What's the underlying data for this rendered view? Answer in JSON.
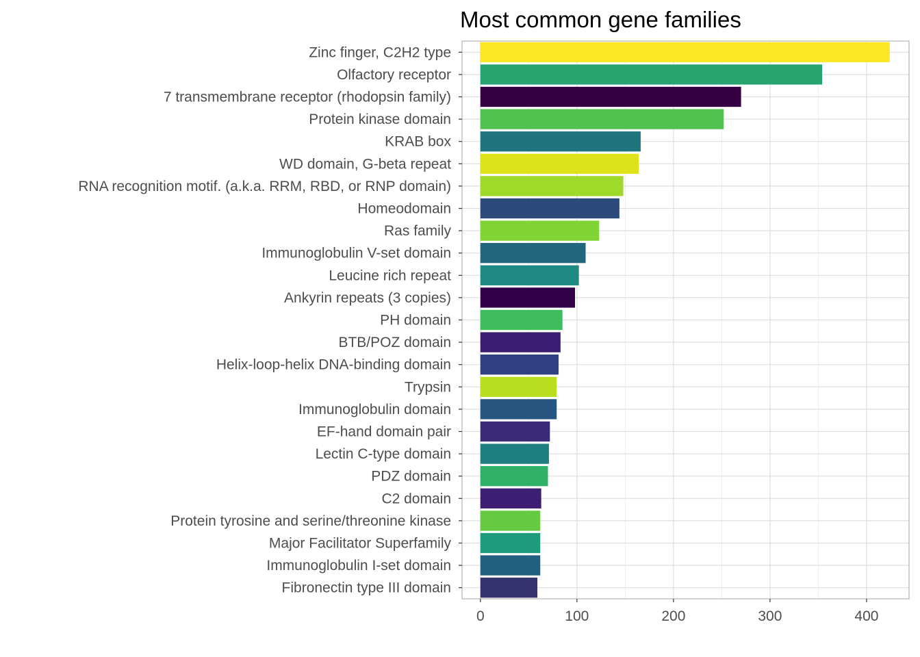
{
  "chart_data": {
    "type": "bar",
    "orientation": "horizontal",
    "title": "Most common gene families",
    "xlabel": "",
    "ylabel": "",
    "xlim": [
      -19,
      444
    ],
    "x_ticks": [
      0,
      100,
      200,
      300,
      400
    ],
    "grid": true,
    "legend": "none",
    "categories": [
      "Zinc finger, C2H2 type",
      "Olfactory receptor",
      "7 transmembrane receptor (rhodopsin family)",
      "Protein kinase domain",
      "KRAB box",
      "WD domain, G-beta repeat",
      "RNA recognition motif. (a.k.a. RRM, RBD, or RNP domain)",
      "Homeodomain",
      "Ras family",
      "Immunoglobulin V-set domain",
      "Leucine rich repeat",
      "Ankyrin repeats (3 copies)",
      "PH domain",
      "BTB/POZ domain",
      "Helix-loop-helix DNA-binding domain",
      "Trypsin",
      "Immunoglobulin domain",
      "EF-hand domain pair",
      "Lectin C-type domain",
      "PDZ domain",
      "C2 domain",
      "Protein tyrosine and serine/threonine kinase",
      "Major Facilitator Superfamily",
      "Immunoglobulin I-set domain",
      "Fibronectin type III domain"
    ],
    "values": [
      424,
      354,
      270,
      252,
      166,
      164,
      148,
      144,
      123,
      109,
      102,
      98,
      85,
      83,
      81,
      79,
      79,
      72,
      71,
      70,
      63,
      62,
      62,
      62,
      59
    ],
    "colors": [
      "#fde725",
      "#26a570",
      "#340042",
      "#52c24f",
      "#1e757e",
      "#dde318",
      "#9fd929",
      "#2c4a7c",
      "#80d434",
      "#23677f",
      "#1f8a83",
      "#300049",
      "#3fbc5c",
      "#3a1c70",
      "#303f80",
      "#bade20",
      "#26567f",
      "#3b2a77",
      "#1f7f80",
      "#2fb168",
      "#3c1f72",
      "#65c941",
      "#1e9a7d",
      "#225f80",
      "#34336f"
    ]
  }
}
